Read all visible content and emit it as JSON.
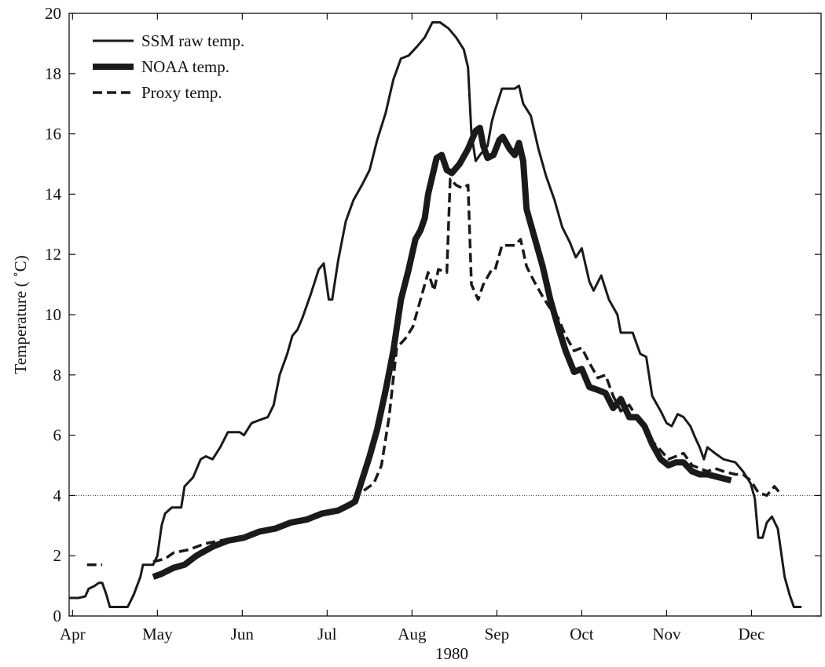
{
  "chart_data": {
    "type": "line",
    "xlabel": "1980",
    "ylabel": "Temperature ( ˚C)",
    "xlim": [
      3.96,
      12.82
    ],
    "ylim": [
      0,
      20
    ],
    "xticks": [
      {
        "value": 4,
        "label": "Apr"
      },
      {
        "value": 5,
        "label": "May"
      },
      {
        "value": 6,
        "label": "Jun"
      },
      {
        "value": 7,
        "label": "Jul"
      },
      {
        "value": 8,
        "label": "Aug"
      },
      {
        "value": 9,
        "label": "Sep"
      },
      {
        "value": 10,
        "label": "Oct"
      },
      {
        "value": 11,
        "label": "Nov"
      },
      {
        "value": 12,
        "label": "Dec"
      }
    ],
    "yticks": [
      0,
      2,
      4,
      6,
      8,
      10,
      12,
      14,
      16,
      18,
      20
    ],
    "grid": false,
    "hline": 4,
    "legend": "upper-left",
    "series": [
      {
        "name": "SSM raw temp.",
        "color": "#1a1a1a",
        "linewidth": 3,
        "linestyle": "solid",
        "x": [
          3.96,
          4.07,
          4.15,
          4.19,
          4.26,
          4.31,
          4.35,
          4.4,
          4.44,
          4.58,
          4.65,
          4.72,
          4.8,
          4.83,
          4.95,
          5.0,
          5.05,
          5.09,
          5.17,
          5.28,
          5.32,
          5.42,
          5.51,
          5.57,
          5.65,
          5.74,
          5.83,
          5.97,
          6.02,
          6.11,
          6.2,
          6.3,
          6.37,
          6.44,
          6.53,
          6.59,
          6.65,
          6.71,
          6.81,
          6.9,
          6.96,
          7.02,
          7.06,
          7.13,
          7.22,
          7.31,
          7.41,
          7.5,
          7.59,
          7.69,
          7.78,
          7.87,
          7.96,
          8.06,
          8.15,
          8.24,
          8.33,
          8.43,
          8.52,
          8.61,
          8.66,
          8.7,
          8.75,
          8.8,
          8.89,
          8.94,
          8.98,
          9.06,
          9.21,
          9.26,
          9.31,
          9.4,
          9.49,
          9.58,
          9.68,
          9.77,
          9.86,
          9.93,
          10.0,
          10.09,
          10.14,
          10.23,
          10.32,
          10.42,
          10.46,
          10.6,
          10.69,
          10.76,
          10.83,
          10.93,
          11.0,
          11.06,
          11.13,
          11.2,
          11.28,
          11.34,
          11.39,
          11.44,
          11.48,
          11.57,
          11.67,
          11.81,
          11.9,
          11.99,
          12.04,
          12.08,
          12.13,
          12.18,
          12.24,
          12.31,
          12.39,
          12.45,
          12.5,
          12.59
        ],
        "values": [
          0.6,
          0.6,
          0.65,
          0.9,
          1.0,
          1.1,
          1.1,
          0.7,
          0.3,
          0.3,
          0.3,
          0.7,
          1.3,
          1.7,
          1.7,
          2.0,
          3.0,
          3.4,
          3.6,
          3.6,
          4.3,
          4.6,
          5.2,
          5.3,
          5.2,
          5.6,
          6.1,
          6.1,
          6.0,
          6.4,
          6.5,
          6.6,
          7.0,
          8.0,
          8.7,
          9.3,
          9.5,
          9.9,
          10.7,
          11.5,
          11.7,
          10.5,
          10.5,
          11.8,
          13.1,
          13.8,
          14.3,
          14.8,
          15.8,
          16.7,
          17.8,
          18.5,
          18.6,
          18.9,
          19.2,
          19.7,
          19.7,
          19.5,
          19.2,
          18.8,
          18.2,
          16.0,
          15.1,
          15.3,
          15.6,
          16.4,
          16.8,
          17.5,
          17.5,
          17.6,
          17.0,
          16.6,
          15.5,
          14.6,
          13.8,
          12.9,
          12.4,
          11.9,
          12.2,
          11.1,
          10.8,
          11.3,
          10.5,
          10.0,
          9.4,
          9.4,
          8.7,
          8.6,
          7.3,
          6.8,
          6.4,
          6.3,
          6.7,
          6.6,
          6.3,
          5.9,
          5.6,
          5.2,
          5.6,
          5.4,
          5.2,
          5.1,
          4.8,
          4.4,
          3.9,
          2.6,
          2.6,
          3.1,
          3.3,
          2.9,
          1.3,
          0.7,
          0.3,
          0.3
        ]
      },
      {
        "name": "NOAA temp.",
        "color": "#1a1a1a",
        "linewidth": 8,
        "linestyle": "solid",
        "x": [
          4.95,
          5.05,
          5.19,
          5.32,
          5.46,
          5.65,
          5.83,
          6.02,
          6.2,
          6.39,
          6.57,
          6.76,
          6.94,
          7.13,
          7.27,
          7.33,
          7.41,
          7.5,
          7.59,
          7.69,
          7.78,
          7.87,
          7.96,
          8.04,
          8.1,
          8.15,
          8.19,
          8.29,
          8.35,
          8.41,
          8.47,
          8.56,
          8.66,
          8.75,
          8.8,
          8.84,
          8.89,
          8.96,
          9.03,
          9.07,
          9.15,
          9.21,
          9.26,
          9.31,
          9.35,
          9.44,
          9.54,
          9.63,
          9.72,
          9.81,
          9.91,
          10.0,
          10.09,
          10.19,
          10.28,
          10.37,
          10.46,
          10.56,
          10.65,
          10.74,
          10.83,
          10.93,
          11.02,
          11.11,
          11.2,
          11.3,
          11.39,
          11.48,
          11.62,
          11.76
        ],
        "values": [
          1.3,
          1.4,
          1.6,
          1.7,
          2.0,
          2.3,
          2.5,
          2.6,
          2.8,
          2.9,
          3.1,
          3.2,
          3.4,
          3.5,
          3.7,
          3.8,
          4.5,
          5.3,
          6.2,
          7.5,
          8.8,
          10.5,
          11.5,
          12.5,
          12.8,
          13.2,
          14.0,
          15.2,
          15.3,
          14.8,
          14.7,
          15.0,
          15.5,
          16.1,
          16.2,
          15.6,
          15.2,
          15.3,
          15.8,
          15.9,
          15.5,
          15.3,
          15.7,
          15.1,
          13.5,
          12.6,
          11.6,
          10.5,
          9.6,
          8.8,
          8.1,
          8.2,
          7.6,
          7.5,
          7.4,
          6.9,
          7.2,
          6.6,
          6.6,
          6.3,
          5.7,
          5.2,
          5.0,
          5.1,
          5.1,
          4.8,
          4.7,
          4.7,
          4.6,
          4.5
        ]
      },
      {
        "name": "Proxy temp.",
        "color": "#1a1a1a",
        "linewidth": 3.5,
        "linestyle": "dashed",
        "x": [
          4.17,
          4.35,
          null,
          4.95,
          5.09,
          5.19,
          5.37,
          5.56,
          5.74,
          5.93,
          6.11,
          6.3,
          6.48,
          6.67,
          6.85,
          7.04,
          7.22,
          7.36,
          7.45,
          7.55,
          7.64,
          7.73,
          7.82,
          7.92,
          8.01,
          8.1,
          8.19,
          8.26,
          8.31,
          8.41,
          8.45,
          8.52,
          8.59,
          8.66,
          8.7,
          8.78,
          8.84,
          8.94,
          8.98,
          9.06,
          9.21,
          9.28,
          9.35,
          9.44,
          9.54,
          9.63,
          9.72,
          9.81,
          9.91,
          10.0,
          10.09,
          10.19,
          10.28,
          10.37,
          10.46,
          10.56,
          10.65,
          10.74,
          10.83,
          10.93,
          11.02,
          11.11,
          11.2,
          11.3,
          11.39,
          11.48,
          11.57,
          11.67,
          11.81,
          11.9,
          11.99,
          12.08,
          12.18,
          12.27,
          12.36
        ],
        "values": [
          1.7,
          1.7,
          null,
          1.8,
          1.9,
          2.1,
          2.2,
          2.4,
          2.5,
          2.6,
          2.7,
          2.8,
          3.0,
          3.2,
          3.3,
          3.4,
          3.6,
          4.0,
          4.2,
          4.4,
          5.0,
          6.6,
          8.9,
          9.2,
          9.6,
          10.5,
          11.4,
          10.8,
          11.5,
          11.4,
          14.5,
          14.3,
          14.2,
          14.3,
          11.0,
          10.5,
          11.0,
          11.5,
          11.5,
          12.3,
          12.3,
          12.5,
          11.6,
          11.1,
          10.6,
          10.2,
          9.9,
          9.3,
          8.8,
          8.9,
          8.4,
          7.9,
          8.0,
          7.3,
          6.8,
          7.0,
          6.6,
          6.4,
          5.8,
          5.5,
          5.2,
          5.3,
          5.4,
          5.0,
          4.9,
          4.8,
          4.9,
          4.8,
          4.7,
          4.7,
          4.5,
          4.1,
          4.0,
          4.3,
          4.0
        ]
      }
    ]
  }
}
